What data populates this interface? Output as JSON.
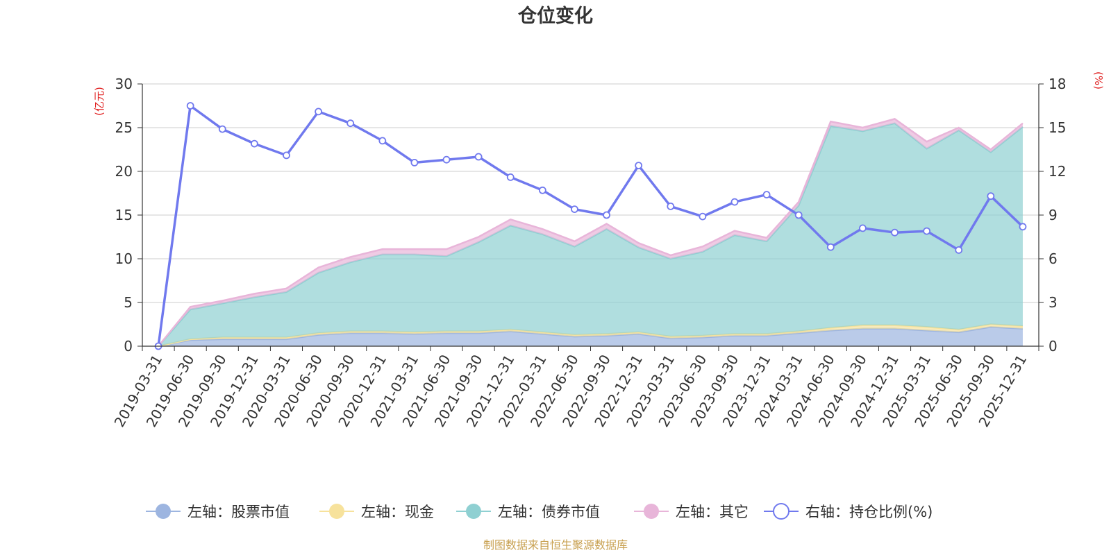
{
  "chart_data": {
    "type": "area",
    "title": "仓位变化",
    "left_axis": {
      "label": "(亿元)",
      "min": 0,
      "max": 30,
      "ticks": [
        0,
        5,
        10,
        15,
        20,
        25,
        30
      ]
    },
    "right_axis": {
      "label": "(%)",
      "min": 0,
      "max": 18,
      "ticks": [
        0,
        3,
        6,
        9,
        12,
        15,
        18
      ]
    },
    "categories": [
      "2019-03-31",
      "2019-06-30",
      "2019-09-30",
      "2019-12-31",
      "2020-03-31",
      "2020-06-30",
      "2020-09-30",
      "2020-12-31",
      "2021-03-31",
      "2021-06-30",
      "2021-09-30",
      "2021-12-31",
      "2022-03-31",
      "2022-06-30",
      "2022-09-30",
      "2022-12-31",
      "2023-03-31",
      "2023-06-30",
      "2023-09-30",
      "2023-12-31",
      "2024-03-31",
      "2024-06-30",
      "2024-09-30",
      "2024-12-31",
      "2025-03-31",
      "2025-06-30",
      "2025-09-30",
      "2025-12-31"
    ],
    "series": [
      {
        "name": "左轴：股票市值",
        "axis": "left",
        "stack": true,
        "color": "#9db5e0",
        "values": [
          0,
          0.7,
          0.8,
          0.8,
          0.8,
          1.3,
          1.5,
          1.5,
          1.4,
          1.5,
          1.5,
          1.7,
          1.4,
          1.1,
          1.2,
          1.4,
          0.9,
          1.0,
          1.2,
          1.2,
          1.5,
          1.8,
          2.0,
          2.0,
          1.8,
          1.6,
          2.2,
          2.0
        ]
      },
      {
        "name": "左轴：现金",
        "axis": "left",
        "stack": true,
        "color": "#f7e29c",
        "values": [
          0,
          0.1,
          0.2,
          0.2,
          0.2,
          0.2,
          0.2,
          0.2,
          0.2,
          0.2,
          0.2,
          0.2,
          0.2,
          0.2,
          0.2,
          0.2,
          0.2,
          0.2,
          0.2,
          0.2,
          0.2,
          0.3,
          0.4,
          0.4,
          0.4,
          0.3,
          0.3,
          0.3
        ]
      },
      {
        "name": "左轴：债券市值",
        "axis": "left",
        "stack": true,
        "color": "#8fd0d2",
        "values": [
          0,
          3.4,
          3.9,
          4.6,
          5.2,
          6.9,
          7.9,
          8.8,
          8.9,
          8.6,
          10.2,
          11.9,
          11.2,
          10.1,
          12.0,
          9.7,
          8.9,
          9.6,
          11.3,
          10.6,
          14.4,
          23.1,
          22.2,
          23.1,
          20.4,
          22.8,
          19.7,
          22.8
        ]
      },
      {
        "name": "左轴：其它",
        "axis": "left",
        "stack": true,
        "color": "#e8b5d9",
        "values": [
          0,
          0.3,
          0.3,
          0.4,
          0.4,
          0.6,
          0.6,
          0.6,
          0.6,
          0.8,
          0.6,
          0.7,
          0.6,
          0.6,
          0.6,
          0.5,
          0.4,
          0.6,
          0.5,
          0.4,
          0.4,
          0.5,
          0.4,
          0.5,
          0.8,
          0.3,
          0.3,
          0.4
        ]
      },
      {
        "name": "右轴：持仓比例(%)",
        "axis": "right",
        "stack": false,
        "color": "#7079ee",
        "values": [
          0,
          16.5,
          14.9,
          13.9,
          13.1,
          16.1,
          15.3,
          14.1,
          12.6,
          12.8,
          13.0,
          11.6,
          10.7,
          9.4,
          9.0,
          12.4,
          9.6,
          8.9,
          9.9,
          10.4,
          9.0,
          6.8,
          8.1,
          7.8,
          7.9,
          6.6,
          10.3,
          8.2
        ]
      }
    ]
  },
  "footer": "制图数据来自恒生聚源数据库"
}
